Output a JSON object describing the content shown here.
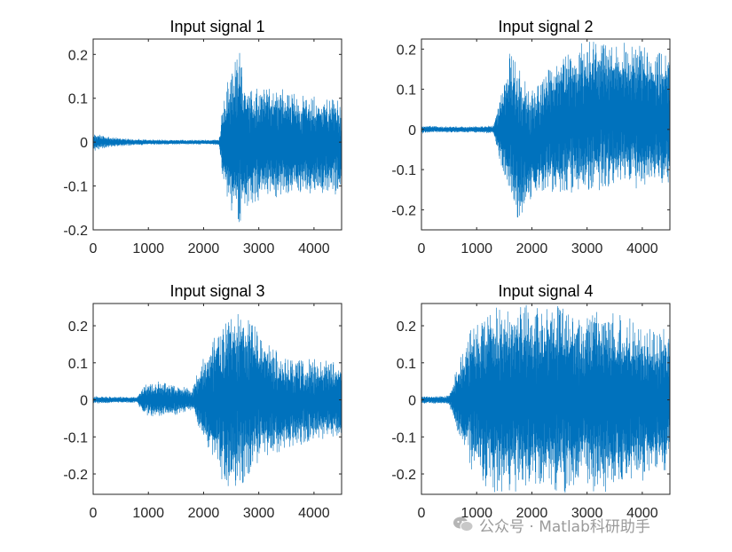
{
  "watermark": {
    "text": "公众号 · Matlab科研助手",
    "icon": "wechat-icon"
  },
  "colors": {
    "trace": "#0072BD",
    "axes": "#262626"
  },
  "chart_data": [
    {
      "type": "line",
      "title": "Input signal 1",
      "xlim": [
        0,
        4500
      ],
      "ylim": [
        -0.2,
        0.235
      ],
      "xticks": [
        0,
        1000,
        2000,
        3000,
        4000
      ],
      "yticks": [
        -0.2,
        -0.1,
        0,
        0.1,
        0.2
      ],
      "ytick_labels": [
        "-0.2",
        "-0.1",
        "0",
        "0.1",
        "0.2"
      ],
      "grid": false,
      "envelope": {
        "x": [
          0,
          300,
          600,
          1000,
          1500,
          2000,
          2280,
          2350,
          2500,
          2650,
          2750,
          3000,
          3200,
          3500,
          4000,
          4500
        ],
        "max": [
          0.02,
          0.012,
          0.008,
          0.006,
          0.005,
          0.005,
          0.006,
          0.09,
          0.18,
          0.235,
          0.14,
          0.13,
          0.14,
          0.12,
          0.11,
          0.1
        ],
        "min": [
          -0.02,
          -0.012,
          -0.008,
          -0.006,
          -0.005,
          -0.005,
          -0.006,
          -0.09,
          -0.17,
          -0.2,
          -0.15,
          -0.14,
          -0.14,
          -0.13,
          -0.12,
          -0.12
        ]
      }
    },
    {
      "type": "line",
      "title": "Input signal 2",
      "xlim": [
        0,
        4500
      ],
      "ylim": [
        -0.25,
        0.225
      ],
      "xticks": [
        0,
        1000,
        2000,
        3000,
        4000
      ],
      "yticks": [
        -0.2,
        -0.1,
        0,
        0.1,
        0.2
      ],
      "ytick_labels": [
        "-0.2",
        "-0.1",
        "0",
        "0.1",
        "0.2"
      ],
      "grid": false,
      "envelope": {
        "x": [
          0,
          300,
          700,
          1000,
          1300,
          1400,
          1600,
          1800,
          2000,
          2300,
          2600,
          3000,
          3500,
          4000,
          4500
        ],
        "max": [
          0.01,
          0.008,
          0.007,
          0.008,
          0.01,
          0.07,
          0.2,
          0.16,
          0.1,
          0.16,
          0.2,
          0.22,
          0.22,
          0.21,
          0.2
        ],
        "min": [
          -0.01,
          -0.008,
          -0.007,
          -0.008,
          -0.01,
          -0.07,
          -0.19,
          -0.24,
          -0.18,
          -0.16,
          -0.17,
          -0.16,
          -0.15,
          -0.15,
          -0.15
        ]
      }
    },
    {
      "type": "line",
      "title": "Input signal 3",
      "xlim": [
        0,
        4500
      ],
      "ylim": [
        -0.255,
        0.26
      ],
      "xticks": [
        0,
        1000,
        2000,
        3000,
        4000
      ],
      "yticks": [
        -0.2,
        -0.1,
        0,
        0.1,
        0.2
      ],
      "ytick_labels": [
        "-0.2",
        "-0.1",
        "0",
        "0.1",
        "0.2"
      ],
      "grid": false,
      "envelope": {
        "x": [
          0,
          400,
          800,
          900,
          1200,
          1500,
          1800,
          1900,
          2100,
          2300,
          2500,
          2700,
          2900,
          3100,
          3400,
          3700,
          4000,
          4500
        ],
        "max": [
          0.01,
          0.008,
          0.008,
          0.04,
          0.05,
          0.04,
          0.03,
          0.09,
          0.15,
          0.21,
          0.25,
          0.26,
          0.22,
          0.17,
          0.12,
          0.12,
          0.11,
          0.11
        ],
        "min": [
          -0.01,
          -0.008,
          -0.008,
          -0.04,
          -0.05,
          -0.04,
          -0.03,
          -0.09,
          -0.15,
          -0.21,
          -0.25,
          -0.24,
          -0.2,
          -0.16,
          -0.14,
          -0.13,
          -0.12,
          -0.11
        ]
      }
    },
    {
      "type": "line",
      "title": "Input signal 4",
      "xlim": [
        0,
        4500
      ],
      "ylim": [
        -0.255,
        0.26
      ],
      "xticks": [
        0,
        1000,
        2000,
        3000,
        4000
      ],
      "yticks": [
        -0.2,
        -0.1,
        0,
        0.1,
        0.2
      ],
      "ytick_labels": [
        "-0.2",
        "-0.1",
        "0",
        "0.1",
        "0.2"
      ],
      "grid": false,
      "envelope": {
        "x": [
          0,
          300,
          500,
          600,
          800,
          1000,
          1300,
          1600,
          2000,
          2400,
          2800,
          2900,
          3100,
          3500,
          4000,
          4500
        ],
        "max": [
          0.01,
          0.01,
          0.012,
          0.07,
          0.16,
          0.22,
          0.25,
          0.26,
          0.26,
          0.26,
          0.26,
          0.2,
          0.26,
          0.24,
          0.21,
          0.2
        ],
        "min": [
          -0.01,
          -0.01,
          -0.012,
          -0.07,
          -0.16,
          -0.22,
          -0.25,
          -0.255,
          -0.255,
          -0.255,
          -0.25,
          -0.2,
          -0.25,
          -0.25,
          -0.22,
          -0.2
        ]
      }
    }
  ]
}
